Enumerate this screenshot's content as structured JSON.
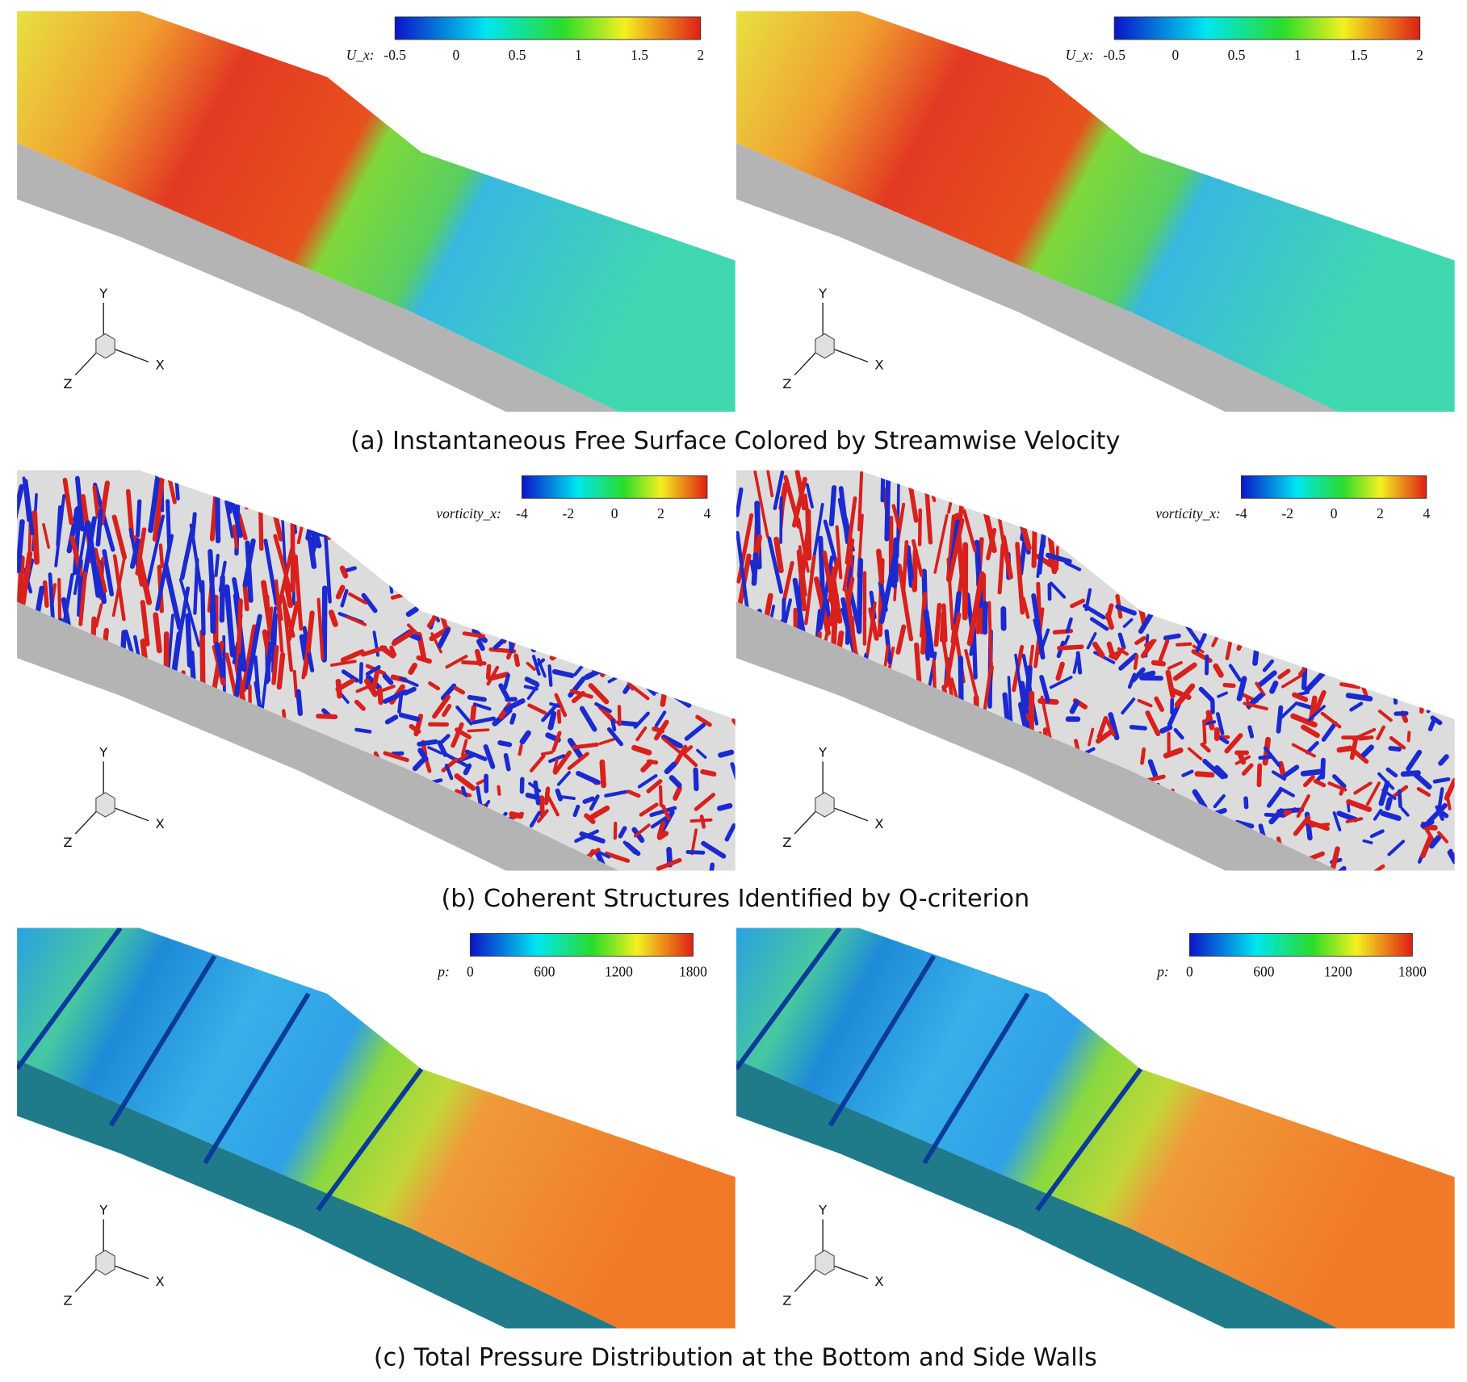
{
  "figure": {
    "rows": [
      {
        "caption": "(a) Instantaneous Free Surface Colored by Streamwise Velocity",
        "panels": [
          {
            "colorbar": {
              "label": "U_x:",
              "ticks": [
                -0.5,
                0,
                0.5,
                1,
                1.5,
                2
              ]
            },
            "axes": {
              "x": "X",
              "y": "Y",
              "z": "Z"
            }
          },
          {
            "colorbar": {
              "label": "U_x:",
              "ticks": [
                -0.5,
                0,
                0.5,
                1,
                1.5,
                2
              ]
            },
            "axes": {
              "x": "X",
              "y": "Y",
              "z": "Z"
            }
          }
        ]
      },
      {
        "caption": "(b) Coherent Structures Identified by Q-criterion",
        "panels": [
          {
            "colorbar": {
              "label": "vorticity_x:",
              "ticks": [
                -4,
                -2,
                0,
                2,
                4
              ]
            },
            "axes": {
              "x": "X",
              "y": "Y",
              "z": "Z"
            }
          },
          {
            "colorbar": {
              "label": "vorticity_x:",
              "ticks": [
                -4,
                -2,
                0,
                2,
                4
              ]
            },
            "axes": {
              "x": "X",
              "y": "Y",
              "z": "Z"
            }
          }
        ]
      },
      {
        "caption": "(c) Total Pressure Distribution at the Bottom and Side Walls",
        "panels": [
          {
            "colorbar": {
              "label": "p:",
              "ticks": [
                0,
                600,
                1200,
                1800
              ]
            },
            "axes": {
              "x": "X",
              "y": "Y",
              "z": "Z"
            }
          },
          {
            "colorbar": {
              "label": "p:",
              "ticks": [
                0,
                600,
                1200,
                1800
              ]
            },
            "axes": {
              "x": "X",
              "y": "Y",
              "z": "Z"
            }
          }
        ]
      }
    ]
  }
}
